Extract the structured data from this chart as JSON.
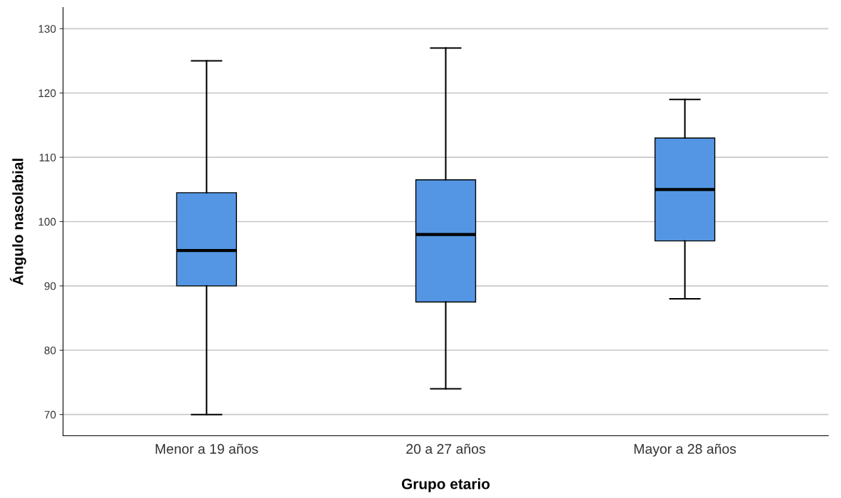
{
  "chart_data": {
    "type": "box",
    "xlabel": "Grupo etario",
    "ylabel": "Ángulo nasolabial",
    "categories": [
      "Menor a 19 años",
      "20 a 27 años",
      "Mayor a 28 años"
    ],
    "boxes": [
      {
        "low": 70,
        "q1": 90,
        "median": 95.5,
        "q3": 104.5,
        "high": 125
      },
      {
        "low": 74,
        "q1": 87.5,
        "median": 98,
        "q3": 106.5,
        "high": 127
      },
      {
        "low": 88,
        "q1": 97,
        "median": 105,
        "q3": 113,
        "high": 119
      }
    ],
    "color": "#5496e3",
    "ylim": [
      66.7,
      133.3
    ],
    "yticks": [
      70,
      80,
      90,
      100,
      110,
      120,
      130
    ],
    "grid": "y"
  }
}
